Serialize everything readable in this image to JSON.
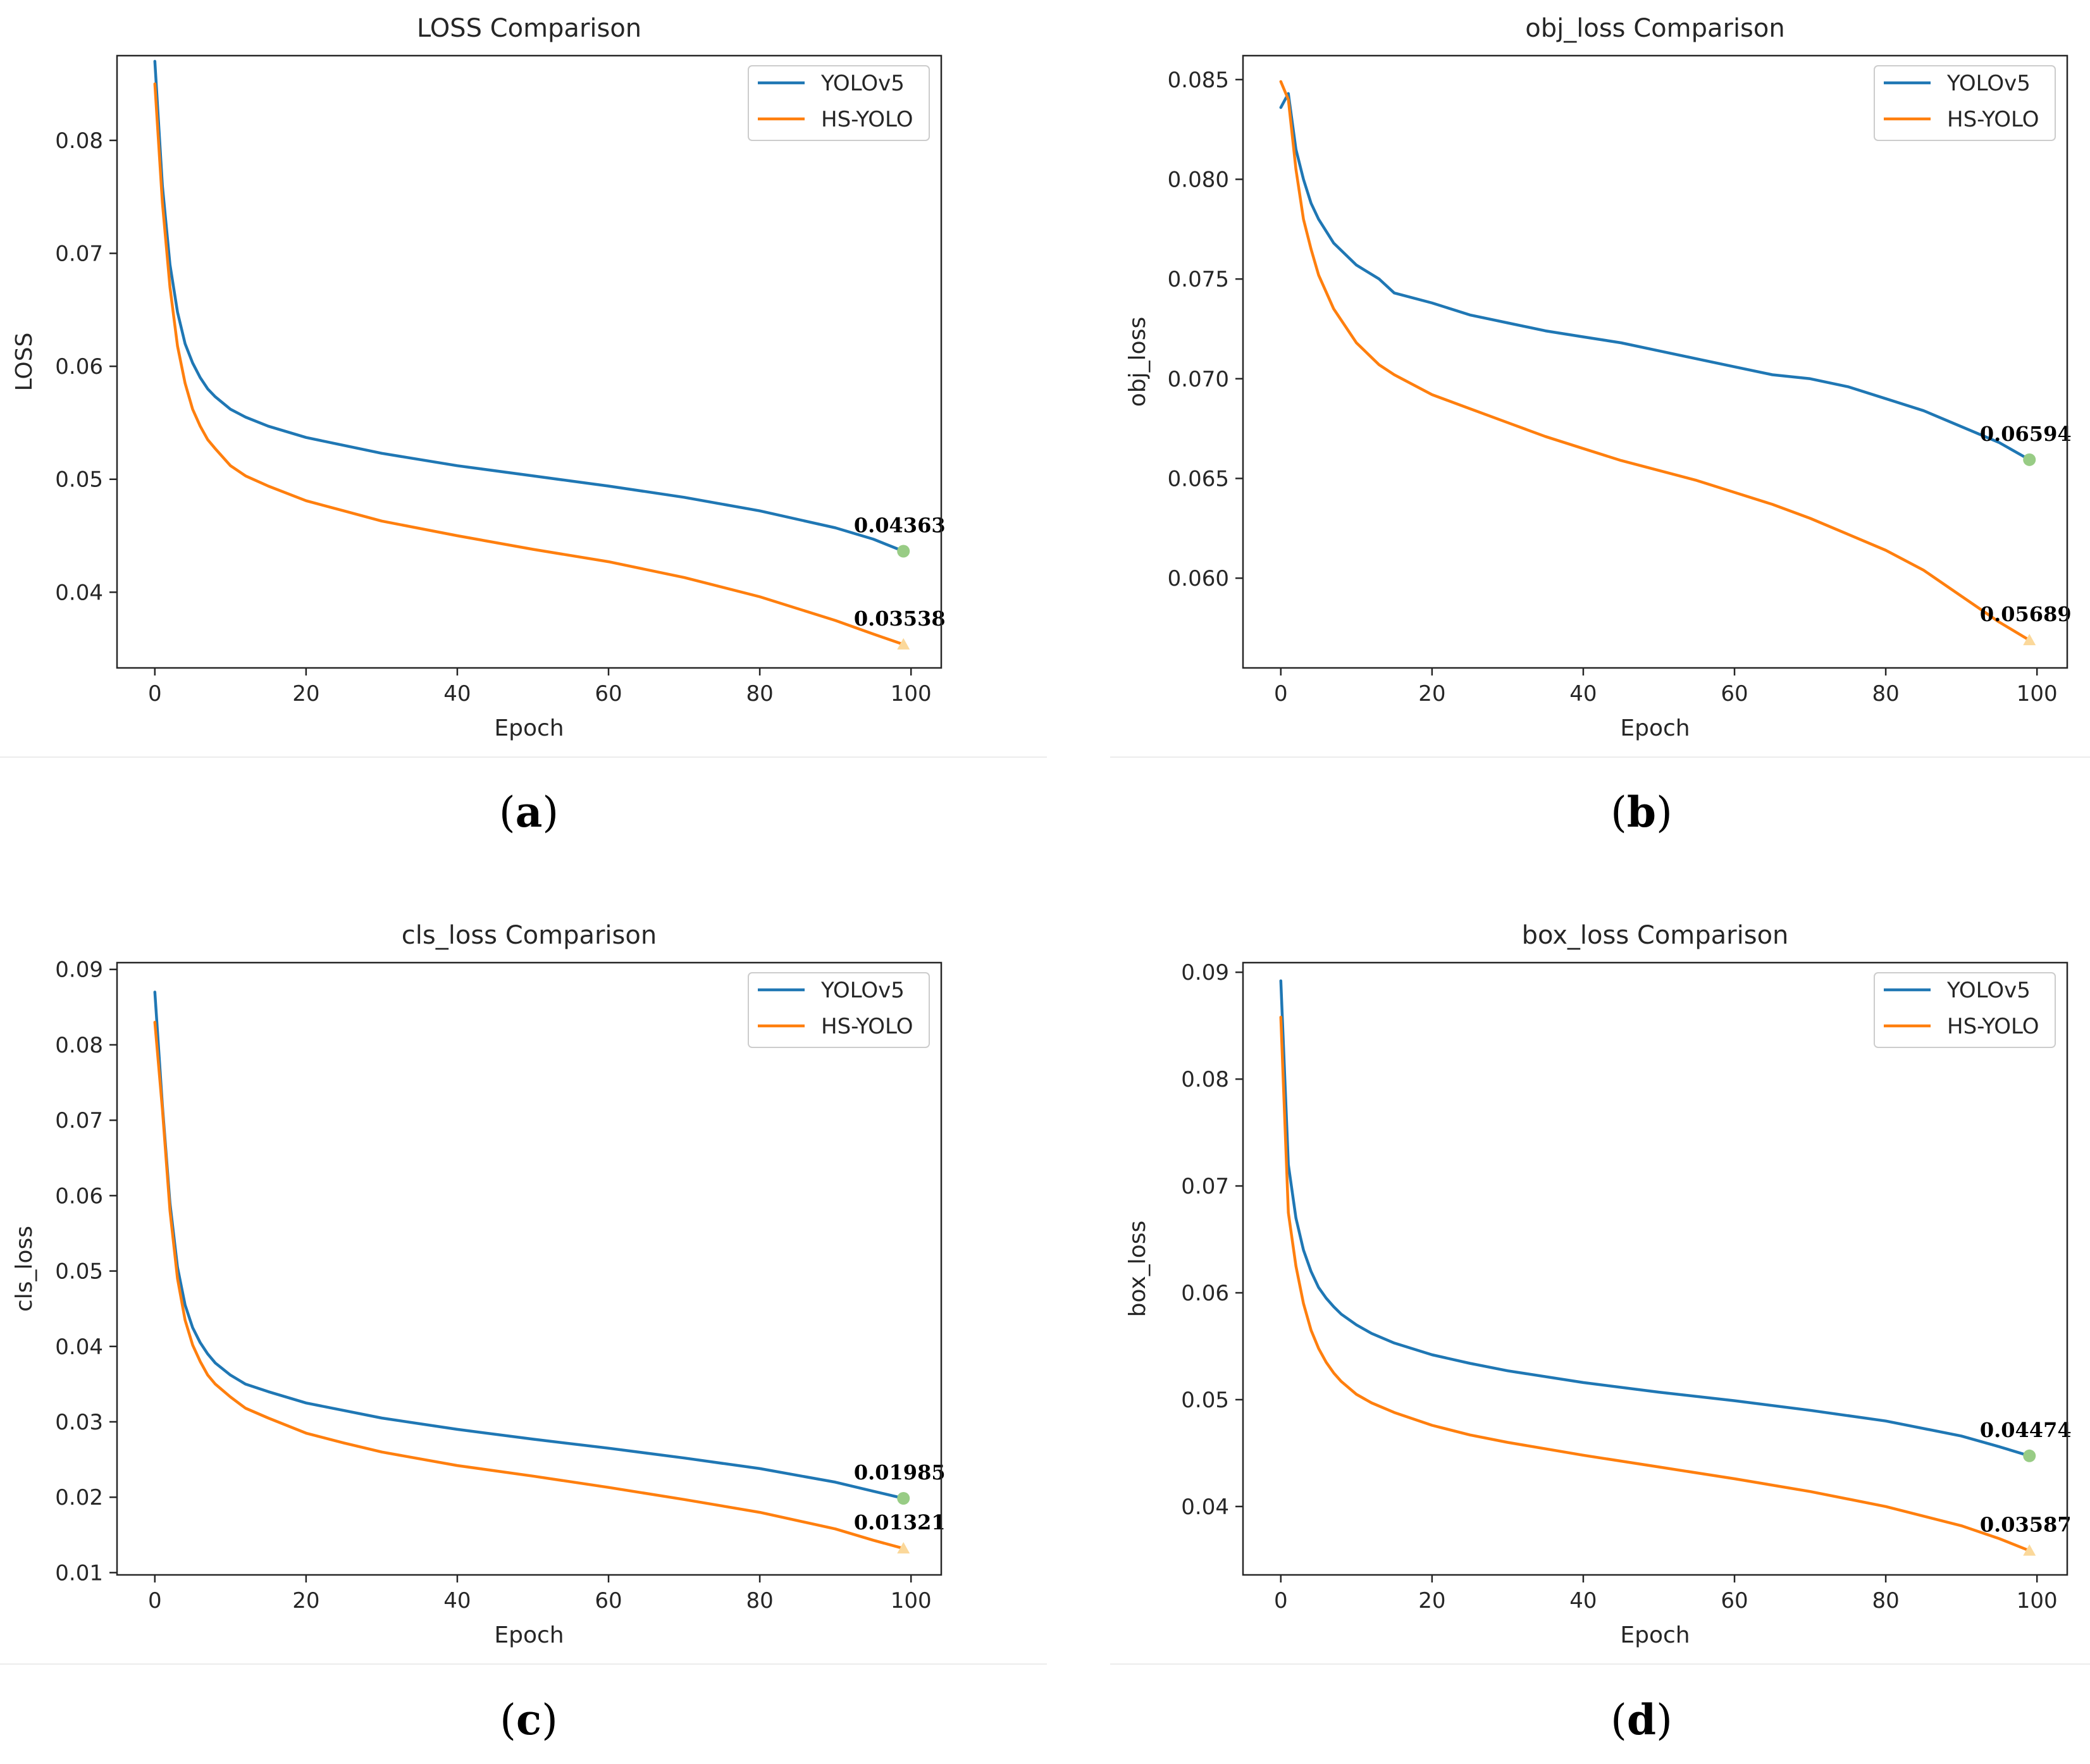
{
  "chart_data": [
    {
      "type": "line",
      "panel_label": "a",
      "title": "LOSS Comparison",
      "xlabel": "Epoch",
      "ylabel": "LOSS",
      "xlim": [
        -5,
        104
      ],
      "ylim": [
        0.0333,
        0.0875
      ],
      "xticks": [
        0,
        20,
        40,
        60,
        80,
        100
      ],
      "yticks": [
        0.04,
        0.05,
        0.06,
        0.07,
        0.08
      ],
      "ytick_labels": [
        "0.04",
        "0.05",
        "0.06",
        "0.07",
        "0.08"
      ],
      "legend": "top-right",
      "series": [
        {
          "name": "YOLOv5",
          "color": "#1f77b4",
          "x": [
            0,
            1,
            2,
            3,
            4,
            5,
            6,
            7,
            8,
            10,
            12,
            15,
            20,
            25,
            30,
            40,
            50,
            60,
            70,
            80,
            90,
            95,
            99
          ],
          "values": [
            0.087,
            0.076,
            0.069,
            0.0648,
            0.062,
            0.0603,
            0.059,
            0.058,
            0.0573,
            0.0562,
            0.0555,
            0.0547,
            0.0537,
            0.053,
            0.0523,
            0.0512,
            0.0503,
            0.0494,
            0.0484,
            0.0472,
            0.0457,
            0.0447,
            0.04363
          ]
        },
        {
          "name": "HS-YOLO",
          "color": "#ff7f0e",
          "x": [
            0,
            1,
            2,
            3,
            4,
            5,
            6,
            7,
            8,
            10,
            12,
            15,
            20,
            25,
            30,
            40,
            50,
            60,
            70,
            80,
            90,
            95,
            99
          ],
          "values": [
            0.085,
            0.0745,
            0.067,
            0.0618,
            0.0585,
            0.0562,
            0.0547,
            0.0535,
            0.0527,
            0.0512,
            0.0503,
            0.0494,
            0.0481,
            0.0472,
            0.0463,
            0.045,
            0.0438,
            0.0427,
            0.0413,
            0.0396,
            0.0375,
            0.0363,
            0.03538
          ]
        }
      ],
      "annotations": [
        {
          "series": "YOLOv5",
          "x": 99,
          "y": 0.04363,
          "label": "0.04363",
          "marker": "circle",
          "color": "#98cc85"
        },
        {
          "series": "HS-YOLO",
          "x": 99,
          "y": 0.03538,
          "label": "0.03538",
          "marker": "triangle",
          "color": "#fbd89a"
        }
      ]
    },
    {
      "type": "line",
      "panel_label": "b",
      "title": "obj_loss Comparison",
      "xlabel": "Epoch",
      "ylabel": "obj_loss",
      "xlim": [
        -5,
        104
      ],
      "ylim": [
        0.0555,
        0.0862
      ],
      "xticks": [
        0,
        20,
        40,
        60,
        80,
        100
      ],
      "yticks": [
        0.06,
        0.065,
        0.07,
        0.075,
        0.08,
        0.085
      ],
      "ytick_labels": [
        "0.060",
        "0.065",
        "0.070",
        "0.075",
        "0.080",
        "0.085"
      ],
      "legend": "top-right",
      "series": [
        {
          "name": "YOLOv5",
          "color": "#1f77b4",
          "x": [
            0,
            1,
            2,
            3,
            4,
            5,
            7,
            10,
            13,
            15,
            20,
            25,
            30,
            35,
            40,
            45,
            50,
            55,
            60,
            65,
            70,
            75,
            80,
            85,
            90,
            95,
            99
          ],
          "values": [
            0.0836,
            0.0843,
            0.0815,
            0.08,
            0.0788,
            0.078,
            0.0768,
            0.0757,
            0.075,
            0.0743,
            0.0738,
            0.0732,
            0.0728,
            0.0724,
            0.0721,
            0.0718,
            0.0714,
            0.071,
            0.0706,
            0.0702,
            0.07,
            0.0696,
            0.069,
            0.0684,
            0.0676,
            0.0668,
            0.06594
          ]
        },
        {
          "name": "HS-YOLO",
          "color": "#ff7f0e",
          "x": [
            0,
            1,
            2,
            3,
            4,
            5,
            7,
            10,
            13,
            15,
            20,
            25,
            30,
            35,
            40,
            45,
            50,
            55,
            60,
            65,
            70,
            75,
            80,
            85,
            90,
            95,
            99
          ],
          "values": [
            0.0849,
            0.084,
            0.0805,
            0.078,
            0.0765,
            0.0752,
            0.0735,
            0.0718,
            0.0707,
            0.0702,
            0.0692,
            0.0685,
            0.0678,
            0.0671,
            0.0665,
            0.0659,
            0.0654,
            0.0649,
            0.0643,
            0.0637,
            0.063,
            0.0622,
            0.0614,
            0.0604,
            0.0591,
            0.0578,
            0.05689
          ]
        }
      ],
      "annotations": [
        {
          "series": "YOLOv5",
          "x": 99,
          "y": 0.06594,
          "label": "0.06594",
          "marker": "circle",
          "color": "#98cc85"
        },
        {
          "series": "HS-YOLO",
          "x": 99,
          "y": 0.05689,
          "label": "0.05689",
          "marker": "triangle",
          "color": "#fbd89a"
        }
      ]
    },
    {
      "type": "line",
      "panel_label": "c",
      "title": "cls_loss Comparison",
      "xlabel": "Epoch",
      "ylabel": "cls_loss",
      "xlim": [
        -5,
        104
      ],
      "ylim": [
        0.0097,
        0.0909
      ],
      "xticks": [
        0,
        20,
        40,
        60,
        80,
        100
      ],
      "yticks": [
        0.01,
        0.02,
        0.03,
        0.04,
        0.05,
        0.06,
        0.07,
        0.08,
        0.09
      ],
      "ytick_labels": [
        "0.01",
        "0.02",
        "0.03",
        "0.04",
        "0.05",
        "0.06",
        "0.07",
        "0.08",
        "0.09"
      ],
      "legend": "top-right",
      "series": [
        {
          "name": "YOLOv5",
          "color": "#1f77b4",
          "x": [
            0,
            1,
            2,
            3,
            4,
            5,
            6,
            7,
            8,
            10,
            12,
            15,
            20,
            25,
            30,
            40,
            50,
            60,
            70,
            80,
            90,
            95,
            99
          ],
          "values": [
            0.087,
            0.072,
            0.059,
            0.0505,
            0.0455,
            0.0425,
            0.0405,
            0.039,
            0.0378,
            0.0362,
            0.035,
            0.034,
            0.0325,
            0.0315,
            0.0305,
            0.029,
            0.0277,
            0.0265,
            0.0252,
            0.0238,
            0.022,
            0.0208,
            0.01985
          ]
        },
        {
          "name": "HS-YOLO",
          "color": "#ff7f0e",
          "x": [
            0,
            1,
            2,
            3,
            4,
            5,
            6,
            7,
            8,
            10,
            12,
            15,
            20,
            25,
            30,
            40,
            50,
            60,
            70,
            80,
            90,
            95,
            99
          ],
          "values": [
            0.083,
            0.0715,
            0.058,
            0.049,
            0.0435,
            0.0402,
            0.038,
            0.0362,
            0.035,
            0.0333,
            0.0318,
            0.0305,
            0.0285,
            0.0272,
            0.026,
            0.0242,
            0.0228,
            0.0213,
            0.0197,
            0.018,
            0.0158,
            0.0143,
            0.01321
          ]
        }
      ],
      "annotations": [
        {
          "series": "YOLOv5",
          "x": 99,
          "y": 0.01985,
          "label": "0.01985",
          "marker": "circle",
          "color": "#98cc85"
        },
        {
          "series": "HS-YOLO",
          "x": 99,
          "y": 0.01321,
          "label": "0.01321",
          "marker": "triangle",
          "color": "#fbd89a"
        }
      ]
    },
    {
      "type": "line",
      "panel_label": "d",
      "title": "box_loss Comparison",
      "xlabel": "Epoch",
      "ylabel": "box_loss",
      "xlim": [
        -5,
        104
      ],
      "ylim": [
        0.0336,
        0.0909
      ],
      "xticks": [
        0,
        20,
        40,
        60,
        80,
        100
      ],
      "yticks": [
        0.04,
        0.05,
        0.06,
        0.07,
        0.08,
        0.09
      ],
      "ytick_labels": [
        "0.04",
        "0.05",
        "0.06",
        "0.07",
        "0.08",
        "0.09"
      ],
      "legend": "top-right",
      "series": [
        {
          "name": "YOLOv5",
          "color": "#1f77b4",
          "x": [
            0,
            1,
            2,
            3,
            4,
            5,
            6,
            7,
            8,
            10,
            12,
            15,
            20,
            25,
            30,
            40,
            50,
            60,
            70,
            80,
            90,
            95,
            99
          ],
          "values": [
            0.0892,
            0.072,
            0.067,
            0.064,
            0.062,
            0.0605,
            0.0595,
            0.0587,
            0.058,
            0.057,
            0.0562,
            0.0553,
            0.0542,
            0.0534,
            0.0527,
            0.0516,
            0.0507,
            0.0499,
            0.049,
            0.048,
            0.0466,
            0.0456,
            0.04474
          ]
        },
        {
          "name": "HS-YOLO",
          "color": "#ff7f0e",
          "x": [
            0,
            1,
            2,
            3,
            4,
            5,
            6,
            7,
            8,
            10,
            12,
            15,
            20,
            25,
            30,
            40,
            50,
            60,
            70,
            80,
            90,
            95,
            99
          ],
          "values": [
            0.0858,
            0.0675,
            0.0625,
            0.059,
            0.0565,
            0.0548,
            0.0535,
            0.0525,
            0.0517,
            0.0505,
            0.0497,
            0.0488,
            0.0476,
            0.0467,
            0.046,
            0.0448,
            0.0437,
            0.0426,
            0.0414,
            0.04,
            0.0382,
            0.037,
            0.03587
          ]
        }
      ],
      "annotations": [
        {
          "series": "YOLOv5",
          "x": 99,
          "y": 0.04474,
          "label": "0.04474",
          "marker": "circle",
          "color": "#98cc85"
        },
        {
          "series": "HS-YOLO",
          "x": 99,
          "y": 0.03587,
          "label": "0.03587",
          "marker": "triangle",
          "color": "#fbd89a"
        }
      ]
    }
  ]
}
